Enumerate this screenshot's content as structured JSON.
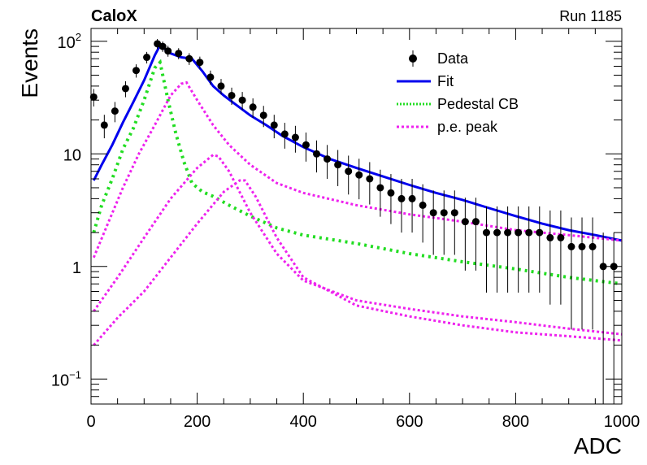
{
  "header": {
    "experiment": "CaloX",
    "run": "Run 1185"
  },
  "chart_data": {
    "type": "scatter",
    "xlabel": "ADC",
    "ylabel": "Events",
    "xlim": [
      0,
      1000
    ],
    "ylim": [
      0.06,
      130
    ],
    "yscale": "log",
    "x_ticks": [
      0,
      200,
      400,
      600,
      800,
      1000
    ],
    "y_ticks": [
      {
        "value": 0.1,
        "base": "10",
        "exp": "−1"
      },
      {
        "value": 1,
        "label": "1"
      },
      {
        "value": 10,
        "label": "10"
      },
      {
        "value": 100,
        "base": "10",
        "exp": "2"
      }
    ],
    "legend": {
      "placement": "top-right",
      "entries": [
        {
          "label": "Data",
          "style": "marker"
        },
        {
          "label": "Fit",
          "style": "line",
          "color": "#0000ee"
        },
        {
          "label": "Pedestal CB",
          "style": "dotted",
          "color": "#22dd22"
        },
        {
          "label": "p.e. peak",
          "style": "dotted",
          "color": "#ee22ee"
        }
      ]
    },
    "colors": {
      "data": "#000000",
      "fit": "#0000ee",
      "pedestal": "#22dd22",
      "pe": "#ee22ee"
    },
    "series": [
      {
        "name": "Data",
        "x": [
          5,
          25,
          45,
          65,
          85,
          105,
          125,
          135,
          145,
          165,
          185,
          205,
          225,
          245,
          265,
          285,
          305,
          325,
          345,
          365,
          385,
          405,
          425,
          445,
          465,
          485,
          505,
          525,
          545,
          565,
          585,
          605,
          625,
          645,
          665,
          685,
          705,
          725,
          745,
          765,
          785,
          805,
          825,
          845,
          865,
          885,
          905,
          925,
          945,
          965,
          985
        ],
        "y": [
          32,
          18,
          24,
          38,
          55,
          72,
          95,
          90,
          82,
          78,
          70,
          65,
          48,
          40,
          33,
          30,
          26,
          22,
          18,
          15,
          14,
          12,
          10,
          9,
          8,
          7,
          6.5,
          6,
          5,
          4.5,
          4,
          4,
          3.5,
          3,
          3,
          3,
          2.5,
          2.5,
          2,
          2,
          2,
          2,
          2,
          2,
          1.8,
          1.8,
          1.5,
          1.5,
          1.5,
          1,
          1
        ]
      },
      {
        "name": "Fit",
        "x": [
          5,
          20,
          40,
          60,
          80,
          100,
          120,
          130,
          150,
          170,
          190,
          210,
          230,
          250,
          270,
          300,
          330,
          360,
          400,
          450,
          500,
          550,
          600,
          650,
          700,
          750,
          800,
          850,
          900,
          950,
          1000
        ],
        "y": [
          5.8,
          8,
          12,
          19,
          29,
          45,
          75,
          92,
          78,
          72,
          70,
          54,
          40,
          33,
          28,
          22,
          18,
          14.5,
          11.5,
          9,
          7.5,
          6.3,
          5.3,
          4.5,
          3.9,
          3.3,
          2.8,
          2.4,
          2.1,
          1.9,
          1.7
        ]
      },
      {
        "name": "Pedestal CB",
        "x": [
          5,
          20,
          40,
          60,
          80,
          100,
          120,
          130,
          145,
          160,
          175,
          190,
          210,
          230,
          260,
          300,
          350,
          400,
          500,
          600,
          700,
          800,
          900,
          1000
        ],
        "y": [
          2,
          3.5,
          6,
          11,
          17,
          30,
          58,
          65,
          30,
          15,
          8.5,
          5.5,
          4.6,
          4.2,
          3.5,
          2.8,
          2.2,
          1.9,
          1.6,
          1.3,
          1.1,
          0.95,
          0.8,
          0.7
        ]
      },
      {
        "name": "p.e. peak",
        "x": [
          5,
          30,
          60,
          90,
          120,
          150,
          170,
          180,
          200,
          230,
          260,
          300,
          350,
          400,
          500,
          600,
          700,
          800,
          900,
          1000
        ],
        "y": [
          1.2,
          2.3,
          5,
          10,
          18,
          33,
          42,
          43,
          30,
          18,
          12,
          8,
          5.5,
          4.5,
          3.5,
          2.9,
          2.5,
          2.1,
          1.9,
          1.7
        ]
      },
      {
        "name": "p.e. peak",
        "x": [
          5,
          50,
          100,
          150,
          200,
          230,
          240,
          260,
          300,
          350,
          400,
          500,
          600,
          700,
          800,
          900,
          1000
        ],
        "y": [
          0.4,
          0.8,
          1.8,
          4,
          7.5,
          9.8,
          9.5,
          7,
          3,
          1.3,
          0.75,
          0.5,
          0.42,
          0.36,
          0.32,
          0.28,
          0.25
        ]
      },
      {
        "name": "p.e. peak",
        "x": [
          5,
          50,
          100,
          150,
          200,
          250,
          280,
          290,
          310,
          350,
          400,
          500,
          600,
          700,
          800,
          900,
          1000
        ],
        "y": [
          0.2,
          0.35,
          0.6,
          1.2,
          2.4,
          4.6,
          5.8,
          5.8,
          4.2,
          1.8,
          0.8,
          0.45,
          0.36,
          0.3,
          0.26,
          0.24,
          0.22
        ]
      }
    ]
  }
}
